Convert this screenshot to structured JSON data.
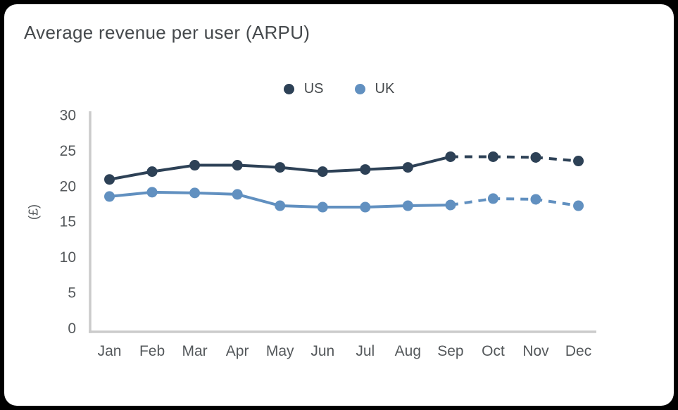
{
  "window": {
    "background": "#000000",
    "card_background": "#ffffff"
  },
  "chart_data": {
    "type": "line",
    "title": "Average revenue per user (ARPU)",
    "xlabel": "",
    "ylabel": "(£)",
    "categories": [
      "Jan",
      "Feb",
      "Mar",
      "Apr",
      "May",
      "Jun",
      "Jul",
      "Aug",
      "Sep",
      "Oct",
      "Nov",
      "Dec"
    ],
    "ylim": [
      0,
      30
    ],
    "yticks": [
      0,
      5,
      10,
      15,
      20,
      25,
      30
    ],
    "grid": false,
    "legend_position": "top-center",
    "forecast_start_index": 8,
    "forecast_line_style": "dashed",
    "series": [
      {
        "name": "US",
        "color": "#2d4156",
        "values": [
          21,
          22.1,
          23,
          23,
          22.7,
          22.1,
          22.4,
          22.7,
          24.2,
          24.2,
          24.1,
          23.6
        ]
      },
      {
        "name": "UK",
        "color": "#6190c0",
        "values": [
          18.6,
          19.2,
          19.1,
          18.9,
          17.3,
          17.1,
          17.1,
          17.3,
          17.4,
          18.3,
          18.2,
          17.3
        ]
      }
    ],
    "styles": {
      "axis_color": "#cbcbcb",
      "tick_text_color": "#54585b",
      "title_color": "#45494c"
    }
  }
}
